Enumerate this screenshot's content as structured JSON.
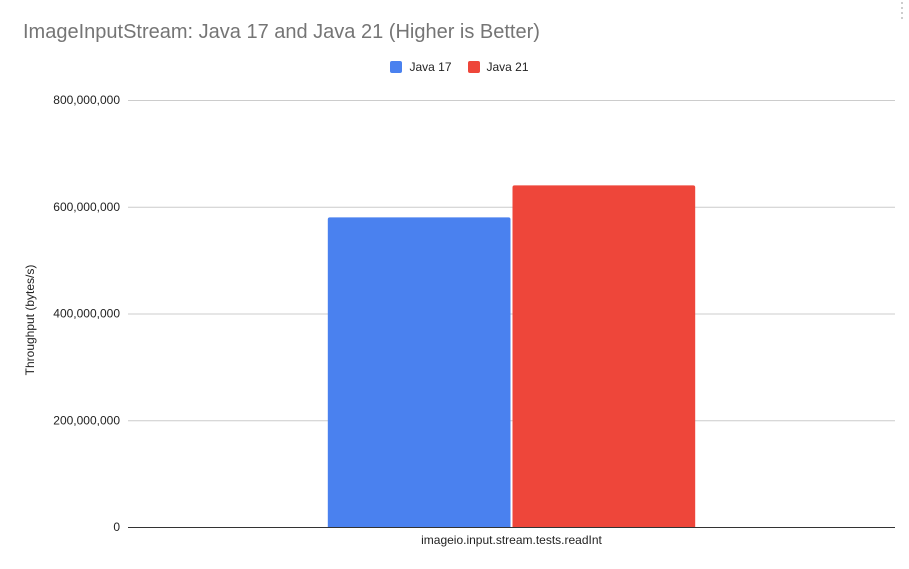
{
  "chart_data": {
    "type": "bar",
    "title": "ImageInputStream: Java 17 and Java 21 (Higher is Better)",
    "xlabel": "",
    "ylabel": "Throughput (bytes/s)",
    "categories": [
      "imageio.input.stream.tests.readInt"
    ],
    "series": [
      {
        "name": "Java 17",
        "color": "#4a81ef",
        "values": [
          580000000
        ]
      },
      {
        "name": "Java 21",
        "color": "#ee463a",
        "values": [
          640000000
        ]
      }
    ],
    "ylim": [
      0,
      800000000
    ],
    "yticks": [
      0,
      200000000,
      400000000,
      600000000,
      800000000
    ],
    "ytick_labels": [
      "0",
      "200,000,000",
      "400,000,000",
      "600,000,000",
      "800,000,000"
    ],
    "grid": true,
    "legend_position": "top"
  }
}
